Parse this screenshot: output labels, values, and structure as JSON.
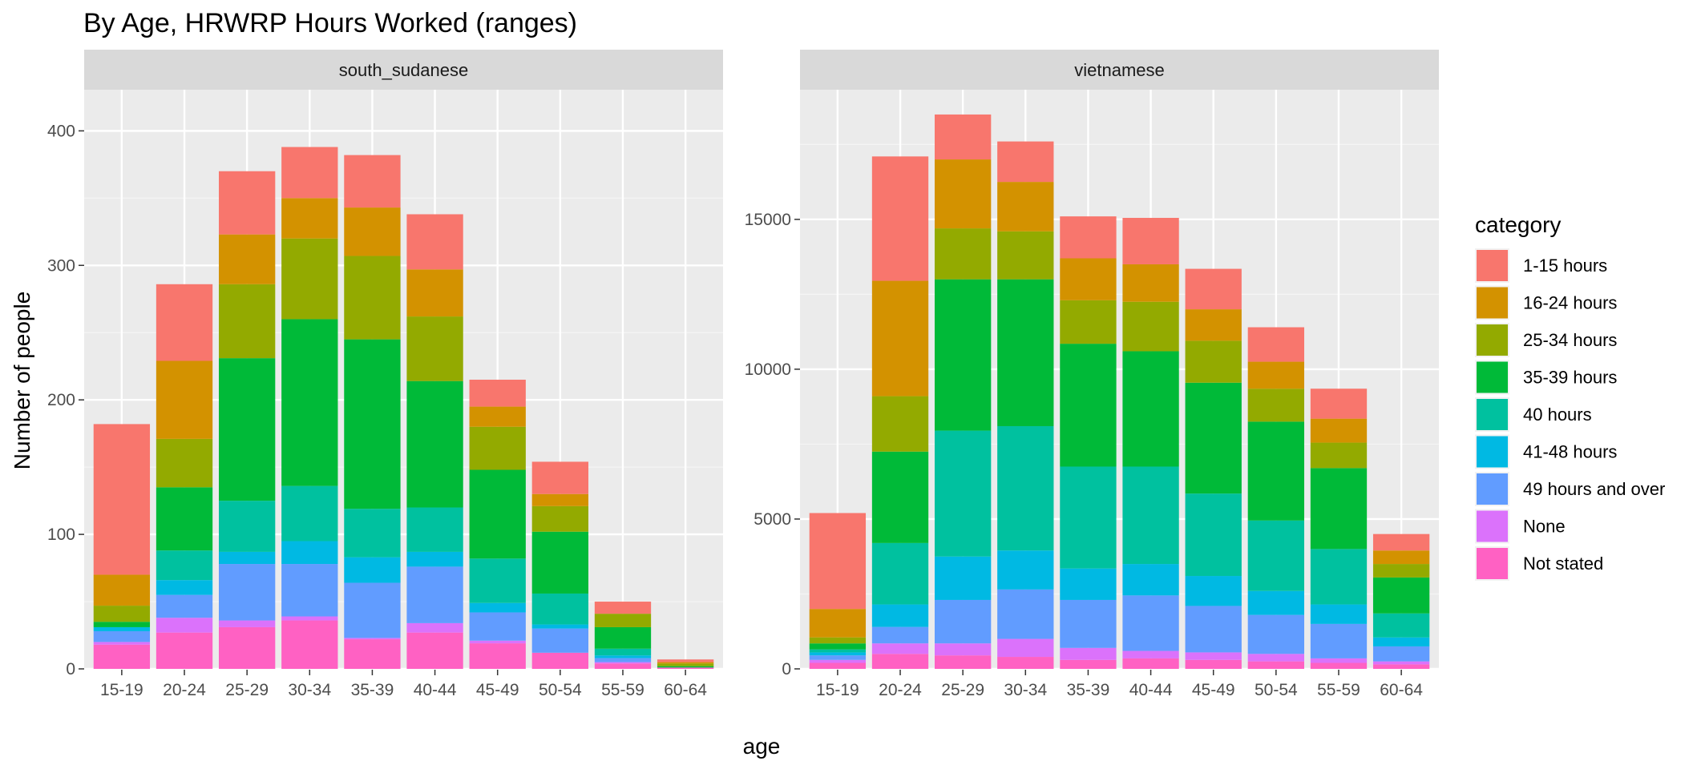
{
  "chart_data": {
    "type": "bar",
    "stacked": true,
    "title": "By Age,  HRWRP Hours Worked (ranges)",
    "xlabel": "age",
    "ylabel": "Number of people",
    "legend_title": "category",
    "legend_position": "right",
    "grid": true,
    "categories": [
      "15-19",
      "20-24",
      "25-29",
      "30-34",
      "35-39",
      "40-44",
      "45-49",
      "50-54",
      "55-59",
      "60-64"
    ],
    "series_names": [
      "1-15 hours",
      "16-24 hours",
      "25-34 hours",
      "35-39 hours",
      "40 hours",
      "41-48 hours",
      "49 hours and over",
      "None",
      "Not stated"
    ],
    "colors": [
      "#F8766D",
      "#D39200",
      "#93AA00",
      "#00BA38",
      "#00C19F",
      "#00B9E3",
      "#619CFF",
      "#DB72FB",
      "#FF61C3"
    ],
    "panels": [
      {
        "name": "south_sudanese",
        "ylim": [
          0,
          430
        ],
        "yticks": [
          0,
          100,
          200,
          300,
          400
        ],
        "stacks": [
          {
            "Not stated": 18,
            "None": 2,
            "49 hours and over": 8,
            "41-48 hours": 3,
            "40 hours": 0,
            "35-39 hours": 4,
            "25-34 hours": 12,
            "16-24 hours": 23,
            "1-15 hours": 112
          },
          {
            "Not stated": 27,
            "None": 11,
            "49 hours and over": 17,
            "41-48 hours": 11,
            "40 hours": 22,
            "35-39 hours": 47,
            "25-34 hours": 36,
            "16-24 hours": 58,
            "1-15 hours": 57
          },
          {
            "Not stated": 31,
            "None": 5,
            "49 hours and over": 42,
            "41-48 hours": 9,
            "40 hours": 38,
            "35-39 hours": 106,
            "25-34 hours": 55,
            "16-24 hours": 37,
            "1-15 hours": 47
          },
          {
            "Not stated": 36,
            "None": 3,
            "49 hours and over": 39,
            "41-48 hours": 17,
            "40 hours": 41,
            "35-39 hours": 124,
            "25-34 hours": 60,
            "16-24 hours": 30,
            "1-15 hours": 38
          },
          {
            "Not stated": 22,
            "None": 1,
            "49 hours and over": 41,
            "41-48 hours": 19,
            "40 hours": 36,
            "35-39 hours": 126,
            "25-34 hours": 62,
            "16-24 hours": 36,
            "1-15 hours": 39
          },
          {
            "Not stated": 27,
            "None": 7,
            "49 hours and over": 42,
            "41-48 hours": 11,
            "40 hours": 33,
            "35-39 hours": 94,
            "25-34 hours": 48,
            "16-24 hours": 35,
            "1-15 hours": 41
          },
          {
            "Not stated": 19,
            "None": 2,
            "49 hours and over": 21,
            "41-48 hours": 7,
            "40 hours": 33,
            "35-39 hours": 66,
            "25-34 hours": 32,
            "16-24 hours": 15,
            "1-15 hours": 20
          },
          {
            "Not stated": 12,
            "None": 0,
            "49 hours and over": 18,
            "41-48 hours": 3,
            "40 hours": 23,
            "35-39 hours": 46,
            "25-34 hours": 19,
            "16-24 hours": 9,
            "1-15 hours": 24
          },
          {
            "Not stated": 4,
            "None": 1,
            "49 hours and over": 3,
            "41-48 hours": 2,
            "40 hours": 5,
            "35-39 hours": 16,
            "25-34 hours": 10,
            "16-24 hours": 0,
            "1-15 hours": 9
          },
          {
            "Not stated": 1,
            "None": 0,
            "49 hours and over": 0,
            "41-48 hours": 0,
            "40 hours": 0,
            "35-39 hours": 1,
            "25-34 hours": 2,
            "16-24 hours": 1,
            "1-15 hours": 2
          }
        ]
      },
      {
        "name": "vietnamese",
        "ylim": [
          0,
          19300
        ],
        "yticks": [
          0,
          5000,
          10000,
          15000
        ],
        "stacks": [
          {
            "Not stated": 200,
            "None": 100,
            "49 hours and over": 150,
            "41-48 hours": 100,
            "40 hours": 100,
            "35-39 hours": 200,
            "25-34 hours": 200,
            "16-24 hours": 950,
            "1-15 hours": 3200
          },
          {
            "Not stated": 500,
            "None": 350,
            "49 hours and over": 550,
            "41-48 hours": 750,
            "40 hours": 2050,
            "35-39 hours": 3050,
            "25-34 hours": 1850,
            "16-24 hours": 3850,
            "1-15 hours": 4150
          },
          {
            "Not stated": 450,
            "None": 400,
            "49 hours and over": 1450,
            "41-48 hours": 1450,
            "40 hours": 4200,
            "35-39 hours": 5050,
            "25-34 hours": 1700,
            "16-24 hours": 2300,
            "1-15 hours": 1500
          },
          {
            "Not stated": 400,
            "None": 600,
            "49 hours and over": 1650,
            "41-48 hours": 1300,
            "40 hours": 4150,
            "35-39 hours": 4900,
            "25-34 hours": 1600,
            "16-24 hours": 1650,
            "1-15 hours": 1350
          },
          {
            "Not stated": 300,
            "None": 400,
            "49 hours and over": 1600,
            "41-48 hours": 1050,
            "40 hours": 3400,
            "35-39 hours": 4100,
            "25-34 hours": 1450,
            "16-24 hours": 1400,
            "1-15 hours": 1400
          },
          {
            "Not stated": 350,
            "None": 250,
            "49 hours and over": 1850,
            "41-48 hours": 1050,
            "40 hours": 3250,
            "35-39 hours": 3850,
            "25-34 hours": 1650,
            "16-24 hours": 1250,
            "1-15 hours": 1550
          },
          {
            "Not stated": 300,
            "None": 250,
            "49 hours and over": 1550,
            "41-48 hours": 1000,
            "40 hours": 2750,
            "35-39 hours": 3700,
            "25-34 hours": 1400,
            "16-24 hours": 1050,
            "1-15 hours": 1350
          },
          {
            "Not stated": 250,
            "None": 250,
            "49 hours and over": 1300,
            "41-48 hours": 800,
            "40 hours": 2350,
            "35-39 hours": 3300,
            "25-34 hours": 1100,
            "16-24 hours": 900,
            "1-15 hours": 1150
          },
          {
            "Not stated": 200,
            "None": 150,
            "49 hours and over": 1150,
            "41-48 hours": 650,
            "40 hours": 1850,
            "35-39 hours": 2700,
            "25-34 hours": 850,
            "16-24 hours": 800,
            "1-15 hours": 1000
          },
          {
            "Not stated": 150,
            "None": 100,
            "49 hours and over": 500,
            "41-48 hours": 300,
            "40 hours": 800,
            "35-39 hours": 1200,
            "25-34 hours": 450,
            "16-24 hours": 450,
            "1-15 hours": 550
          }
        ]
      }
    ]
  }
}
